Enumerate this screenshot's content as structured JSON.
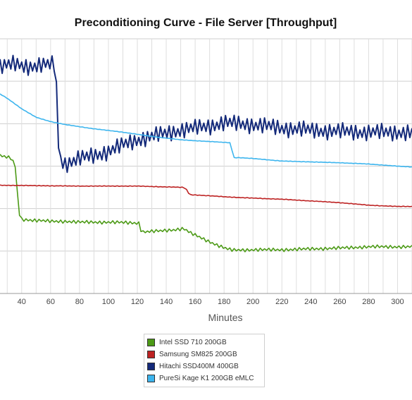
{
  "chart_data": {
    "type": "line",
    "title": "Preconditioning Curve - File Server [Throughput]",
    "xlabel": "Minutes",
    "ylabel": "",
    "xlim": [
      25,
      310
    ],
    "ylim": [
      0,
      6
    ],
    "x_ticks": [
      40,
      60,
      80,
      100,
      120,
      140,
      160,
      180,
      200,
      220,
      240,
      260,
      280,
      300
    ],
    "grid": true,
    "legend_position": "bottom",
    "series": [
      {
        "name": "Intel SSD 710 200GB",
        "color": "#4c9a16",
        "points": [
          [
            25,
            3.25
          ],
          [
            33,
            3.18
          ],
          [
            36,
            2.95
          ],
          [
            37.5,
            2.1
          ],
          [
            39,
            1.75
          ],
          [
            50,
            1.72
          ],
          [
            60,
            1.7
          ],
          [
            70,
            1.7
          ],
          [
            80,
            1.68
          ],
          [
            100,
            1.68
          ],
          [
            121,
            1.66
          ],
          [
            123,
            1.45
          ],
          [
            135,
            1.47
          ],
          [
            145,
            1.5
          ],
          [
            152,
            1.53
          ],
          [
            157,
            1.42
          ],
          [
            168,
            1.25
          ],
          [
            176,
            1.13
          ],
          [
            182,
            1.05
          ],
          [
            186,
            1.02
          ],
          [
            200,
            1.03
          ],
          [
            220,
            1.03
          ],
          [
            240,
            1.05
          ],
          [
            260,
            1.07
          ],
          [
            280,
            1.1
          ],
          [
            300,
            1.1
          ],
          [
            310,
            1.1
          ]
        ]
      },
      {
        "name": "Samsung SM825 200GB",
        "color": "#bd2222",
        "points": [
          [
            25,
            2.55
          ],
          [
            50,
            2.54
          ],
          [
            80,
            2.53
          ],
          [
            100,
            2.53
          ],
          [
            120,
            2.53
          ],
          [
            140,
            2.51
          ],
          [
            152,
            2.5
          ],
          [
            154,
            2.45
          ],
          [
            156,
            2.33
          ],
          [
            170,
            2.3
          ],
          [
            190,
            2.26
          ],
          [
            220,
            2.22
          ],
          [
            240,
            2.18
          ],
          [
            260,
            2.14
          ],
          [
            280,
            2.08
          ],
          [
            300,
            2.05
          ],
          [
            310,
            2.05
          ]
        ]
      },
      {
        "name": "Hitachi SSD400M 400GB",
        "color": "#142a7a",
        "points": [
          [
            25,
            5.35
          ],
          [
            35,
            5.4
          ],
          [
            45,
            5.35
          ],
          [
            55,
            5.38
          ],
          [
            63,
            5.4
          ],
          [
            64,
            4.85
          ],
          [
            65,
            3.85
          ],
          [
            66,
            3.2
          ],
          [
            70,
            3.05
          ],
          [
            80,
            3.18
          ],
          [
            90,
            3.25
          ],
          [
            100,
            3.35
          ],
          [
            110,
            3.5
          ],
          [
            120,
            3.62
          ],
          [
            130,
            3.7
          ],
          [
            140,
            3.78
          ],
          [
            150,
            3.85
          ],
          [
            160,
            3.9
          ],
          [
            170,
            3.95
          ],
          [
            180,
            4.02
          ],
          [
            190,
            4.0
          ],
          [
            200,
            3.98
          ],
          [
            220,
            3.9
          ],
          [
            240,
            3.85
          ],
          [
            260,
            3.82
          ],
          [
            280,
            3.8
          ],
          [
            300,
            3.8
          ],
          [
            310,
            3.78
          ]
        ]
      },
      {
        "name": "PureSi Kage K1 200GB eMLC",
        "color": "#3db5ee",
        "points": [
          [
            25,
            4.7
          ],
          [
            30,
            4.6
          ],
          [
            40,
            4.35
          ],
          [
            50,
            4.15
          ],
          [
            60,
            4.05
          ],
          [
            70,
            3.98
          ],
          [
            80,
            3.93
          ],
          [
            90,
            3.88
          ],
          [
            100,
            3.84
          ],
          [
            110,
            3.8
          ],
          [
            120,
            3.75
          ],
          [
            130,
            3.7
          ],
          [
            140,
            3.66
          ],
          [
            150,
            3.62
          ],
          [
            160,
            3.6
          ],
          [
            170,
            3.58
          ],
          [
            185,
            3.55
          ],
          [
            186,
            3.2
          ],
          [
            190,
            3.2
          ],
          [
            200,
            3.18
          ],
          [
            220,
            3.12
          ],
          [
            240,
            3.1
          ],
          [
            260,
            3.08
          ],
          [
            280,
            3.05
          ],
          [
            300,
            3.0
          ],
          [
            310,
            2.98
          ]
        ]
      }
    ]
  }
}
